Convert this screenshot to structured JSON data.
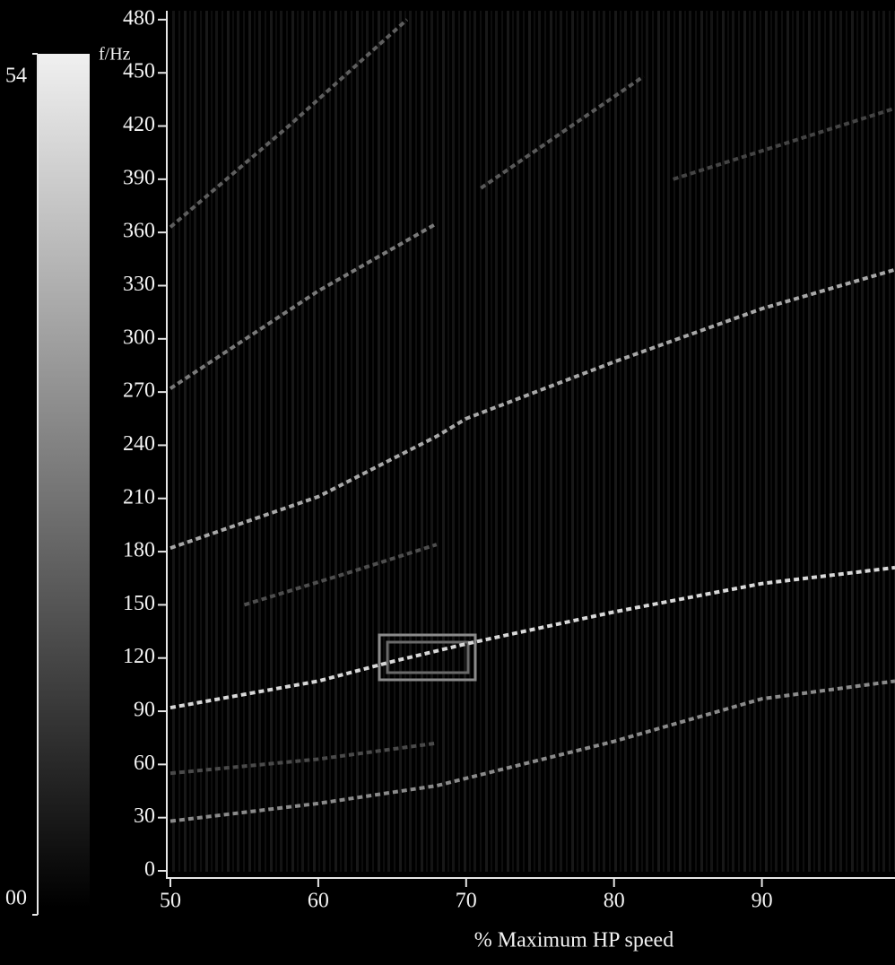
{
  "chart_data": {
    "type": "line",
    "x_label": "% Maximum HP speed",
    "y_label": "f/Hz",
    "xlim": [
      50,
      99
    ],
    "ylim": [
      0,
      485
    ],
    "xticks": [
      50,
      60,
      70,
      80,
      90
    ],
    "yticks": [
      0,
      30,
      60,
      90,
      120,
      150,
      180,
      210,
      240,
      270,
      300,
      330,
      360,
      390,
      420,
      450,
      480
    ],
    "colorbar_labels": [
      "54",
      "00"
    ],
    "colorbar_colors": [
      "#f0f0f0",
      "#000000"
    ],
    "series": [
      {
        "color": "#d8d8d8",
        "x": [
          50,
          60,
          65,
          70,
          80,
          90,
          99
        ],
        "values": [
          92,
          107,
          118,
          128,
          146,
          162,
          171
        ]
      },
      {
        "color": "#8a8a8a",
        "x": [
          50,
          60,
          68,
          80,
          90,
          99
        ],
        "values": [
          28,
          38,
          48,
          73,
          97,
          107
        ]
      },
      {
        "color": "#a8a8a8",
        "x": [
          50,
          60,
          68,
          70,
          80,
          90,
          99
        ],
        "values": [
          182,
          211,
          245,
          255,
          287,
          317,
          339
        ]
      },
      {
        "color": "#7a7a7a",
        "x": [
          50,
          60,
          68
        ],
        "values": [
          272,
          327,
          365
        ]
      },
      {
        "color": "#5e5e5e",
        "x": [
          50,
          58,
          66
        ],
        "values": [
          363,
          420,
          480
        ]
      },
      {
        "color": "#5a5a5a",
        "x": [
          71,
          82
        ],
        "values": [
          385,
          448
        ]
      },
      {
        "color": "#4a4a4a",
        "x": [
          50,
          60,
          68
        ],
        "values": [
          55,
          63,
          72
        ]
      },
      {
        "color": "#4e4e4e",
        "x": [
          55,
          62,
          68
        ],
        "values": [
          150,
          168,
          184
        ]
      },
      {
        "color": "#444444",
        "x": [
          84,
          99
        ],
        "values": [
          390,
          430
        ]
      }
    ]
  }
}
